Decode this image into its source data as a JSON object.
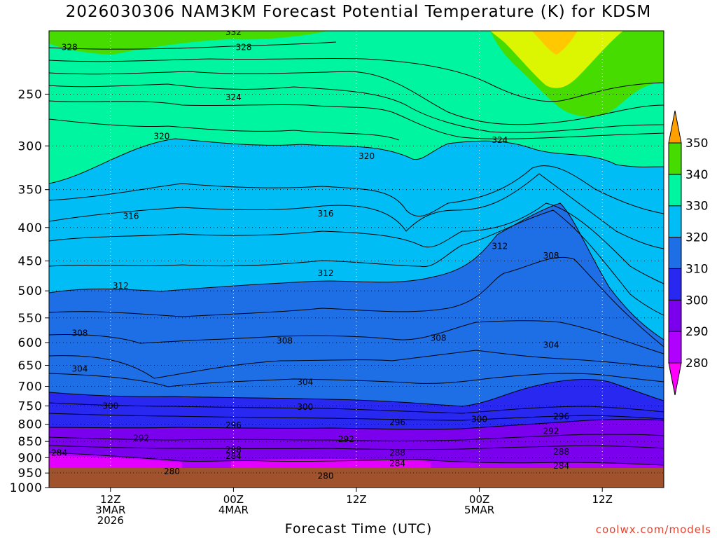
{
  "chart_data": {
    "type": "heatmap",
    "title": "2026030306 NAM3KM Forecast Potential Temperature (K) for KDSM",
    "xlabel": "Forecast Time (UTC)",
    "ylabel": "",
    "y_scale": "log",
    "y_reversed": true,
    "ylim": [
      1000,
      200
    ],
    "y_ticks": [
      250,
      300,
      350,
      400,
      450,
      500,
      550,
      600,
      650,
      700,
      750,
      800,
      850,
      900,
      950,
      1000
    ],
    "xlim": [
      "2026-03-03T06Z",
      "2026-03-05T18Z"
    ],
    "x_ticks": [
      {
        "time": "2026-03-03T12Z",
        "label": [
          "12Z",
          "3MAR",
          "2026"
        ]
      },
      {
        "time": "2026-03-04T00Z",
        "label": [
          "00Z",
          "4MAR"
        ]
      },
      {
        "time": "2026-03-04T12Z",
        "label": [
          "12Z"
        ]
      },
      {
        "time": "2026-03-05T00Z",
        "label": [
          "00Z",
          "5MAR"
        ]
      },
      {
        "time": "2026-03-05T12Z",
        "label": [
          "12Z"
        ]
      }
    ],
    "grid": true,
    "surface_pressure": 975,
    "colorbar": {
      "levels": [
        280,
        290,
        300,
        310,
        320,
        330,
        340,
        350
      ],
      "colors": [
        "#b000ff",
        "#7a00ee",
        "#2828f0",
        "#1e6ee6",
        "#00bef5",
        "#00f5a0",
        "#46dc00",
        "#dcf500",
        "#ffc800"
      ]
    },
    "contour_labels": [
      {
        "t": "2026-03-03T08Z",
        "p": 212,
        "value": "328"
      },
      {
        "t": "2026-03-04T00Z",
        "p": 201,
        "value": "332"
      },
      {
        "t": "2026-03-04T01Z",
        "p": 212,
        "value": "328"
      },
      {
        "t": "2026-03-04T00Z",
        "p": 253,
        "value": "324"
      },
      {
        "t": "2026-03-03T17Z",
        "p": 290,
        "value": "320"
      },
      {
        "t": "2026-03-04T13Z",
        "p": 311,
        "value": "320"
      },
      {
        "t": "2026-03-05T02Z",
        "p": 294,
        "value": "324"
      },
      {
        "t": "2026-03-03T14Z",
        "p": 384,
        "value": "316"
      },
      {
        "t": "2026-03-04T09Z",
        "p": 381,
        "value": "316"
      },
      {
        "t": "2026-03-05T02Z",
        "p": 427,
        "value": "312"
      },
      {
        "t": "2026-03-05T07Z",
        "p": 442,
        "value": "308"
      },
      {
        "t": "2026-03-03T13Z",
        "p": 491,
        "value": "312"
      },
      {
        "t": "2026-03-04T09Z",
        "p": 470,
        "value": "312"
      },
      {
        "t": "2026-03-03T09Z",
        "p": 580,
        "value": "308"
      },
      {
        "t": "2026-03-04T05Z",
        "p": 596,
        "value": "308"
      },
      {
        "t": "2026-03-04T20Z",
        "p": 590,
        "value": "308"
      },
      {
        "t": "2026-03-05T07Z",
        "p": 605,
        "value": "304"
      },
      {
        "t": "2026-03-03T09Z",
        "p": 658,
        "value": "304"
      },
      {
        "t": "2026-03-04T07Z",
        "p": 690,
        "value": "304"
      },
      {
        "t": "2026-03-03T12Z",
        "p": 750,
        "value": "300"
      },
      {
        "t": "2026-03-04T07Z",
        "p": 753,
        "value": "300"
      },
      {
        "t": "2026-03-05T00Z",
        "p": 786,
        "value": "300"
      },
      {
        "t": "2026-03-04T00Z",
        "p": 803,
        "value": "296"
      },
      {
        "t": "2026-03-04T16Z",
        "p": 795,
        "value": "296"
      },
      {
        "t": "2026-03-05T08Z",
        "p": 778,
        "value": "296"
      },
      {
        "t": "2026-03-03T15Z",
        "p": 840,
        "value": "292"
      },
      {
        "t": "2026-03-04T11Z",
        "p": 843,
        "value": "292"
      },
      {
        "t": "2026-03-05T07Z",
        "p": 820,
        "value": "292"
      },
      {
        "t": "2026-03-03T07Z",
        "p": 885,
        "value": "284"
      },
      {
        "t": "2026-03-04T00Z",
        "p": 875,
        "value": "288"
      },
      {
        "t": "2026-03-04T00Z",
        "p": 895,
        "value": "284"
      },
      {
        "t": "2026-03-04T16Z",
        "p": 885,
        "value": "288"
      },
      {
        "t": "2026-03-05T08Z",
        "p": 882,
        "value": "288"
      },
      {
        "t": "2026-03-04T16Z",
        "p": 918,
        "value": "284"
      },
      {
        "t": "2026-03-05T08Z",
        "p": 926,
        "value": "284"
      },
      {
        "t": "2026-03-03T18Z",
        "p": 945,
        "value": "280"
      },
      {
        "t": "2026-03-04T09Z",
        "p": 960,
        "value": "280"
      }
    ]
  },
  "credit": "coolwx.com/models"
}
